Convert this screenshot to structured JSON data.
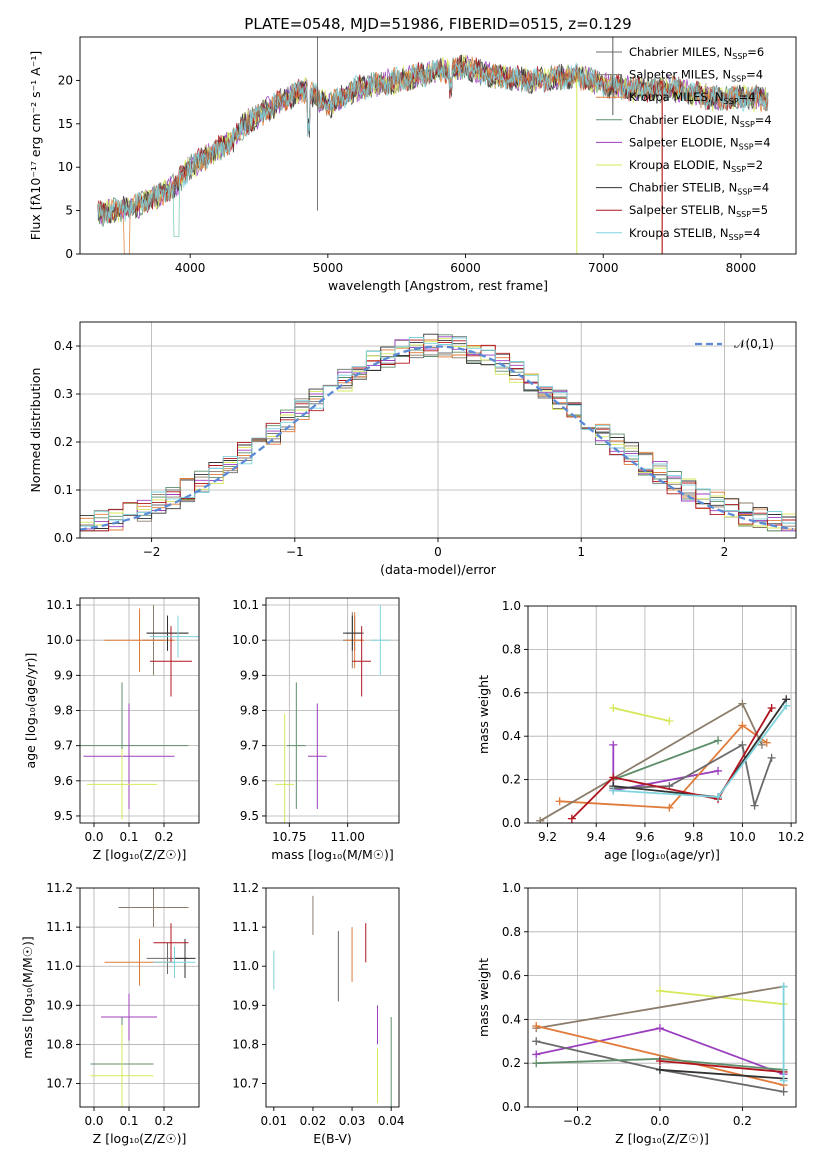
{
  "figure_title": "PLATE=0548, MJD=51986, FIBERID=0515, z=0.129",
  "models": [
    {
      "name": "Chabrier MILES, N",
      "sub": "SSP",
      "tail": "=6",
      "color": "#6b6b6b"
    },
    {
      "name": "Salpeter MILES, N",
      "sub": "SSP",
      "tail": "=4",
      "color": "#8c7d6b"
    },
    {
      "name": "Kroupa MILES, N",
      "sub": "SSP",
      "tail": "=4",
      "color": "#e07b39"
    },
    {
      "name": "Chabrier ELODIE, N",
      "sub": "SSP",
      "tail": "=4",
      "color": "#5f8f6a"
    },
    {
      "name": "Salpeter ELODIE, N",
      "sub": "SSP",
      "tail": "=4",
      "color": "#9b3fbf"
    },
    {
      "name": "Kroupa ELODIE, N",
      "sub": "SSP",
      "tail": "=2",
      "color": "#d6e85a"
    },
    {
      "name": "Chabrier STELIB, N",
      "sub": "SSP",
      "tail": "=4",
      "color": "#333333"
    },
    {
      "name": "Salpeter STELIB, N",
      "sub": "SSP",
      "tail": "=5",
      "color": "#b0151f"
    },
    {
      "name": "Kroupa STELIB, N",
      "sub": "SSP",
      "tail": "=4",
      "color": "#7fd3dd"
    }
  ],
  "chart_data": [
    {
      "id": "spectrum",
      "type": "line",
      "xlabel": "wavelength [Angstrom, rest frame]",
      "ylabel": "Flux [fλ10⁻¹⁷ erg cm⁻² s⁻¹ A⁻¹]",
      "xlim": [
        3200,
        8400
      ],
      "ylim": [
        0,
        25
      ],
      "xticks": [
        4000,
        5000,
        6000,
        7000,
        8000
      ],
      "yticks": [
        0,
        5,
        10,
        15,
        20
      ],
      "grid": false,
      "legend": "right",
      "anchors_x": [
        3300,
        3450,
        3600,
        3750,
        3900,
        4000,
        4100,
        4200,
        4300,
        4400,
        4500,
        4700,
        4850,
        5000,
        5200,
        5500,
        5800,
        6000,
        6200,
        6500,
        6800,
        7000,
        7200,
        7500,
        7800,
        8100
      ],
      "anchors_y": [
        4.5,
        5,
        5.5,
        6.5,
        8,
        10,
        11,
        12,
        13,
        15,
        16,
        18,
        19,
        17,
        19,
        20,
        21,
        21.5,
        20.5,
        20,
        20.5,
        19.5,
        19,
        19,
        18,
        18
      ]
    },
    {
      "id": "residuals",
      "type": "histogram",
      "xlabel": "(data-model)/error",
      "ylabel": "Normed distribution",
      "xlim": [
        -2.5,
        2.5
      ],
      "ylim": [
        0,
        0.45
      ],
      "xticks": [
        -2,
        -1,
        0,
        1,
        2
      ],
      "yticks": [
        0,
        0.1,
        0.2,
        0.3,
        0.4
      ],
      "grid": true,
      "legend": "top-right",
      "legend_label": "𝒩(0,1)",
      "bin_width": 0.1
    },
    {
      "id": "z_age",
      "type": "errorbar",
      "xlabel": "Z [log₁₀(Z/Z☉)]",
      "ylabel": "age  [log₁₀(age/yr)]",
      "xlim": [
        -0.04,
        0.3
      ],
      "ylim": [
        9.48,
        10.12
      ],
      "xticks": [
        0,
        0.1,
        0.2
      ],
      "yticks": [
        9.5,
        9.6,
        9.7,
        9.8,
        9.9,
        10.0,
        10.1
      ],
      "grid": true,
      "points": [
        {
          "x": 0.21,
          "xerr": 0.06,
          "y": 10.02,
          "yerr": 0.05,
          "model": 0
        },
        {
          "x": 0.17,
          "xerr": 0.03,
          "y": 10.0,
          "yerr": 0.1,
          "model": 1
        },
        {
          "x": 0.13,
          "xerr": 0.1,
          "y": 10.0,
          "yerr": 0.09,
          "model": 2
        },
        {
          "x": 0.08,
          "xerr": 0.19,
          "y": 9.7,
          "yerr": 0.18,
          "model": 3
        },
        {
          "x": 0.1,
          "xerr": 0.13,
          "y": 9.67,
          "yerr": 0.15,
          "model": 4
        },
        {
          "x": 0.08,
          "xerr": 0.1,
          "y": 9.59,
          "yerr": 0.1,
          "model": 5
        },
        {
          "x": 0.21,
          "xerr": 0.06,
          "y": 10.02,
          "yerr": 0.05,
          "model": 6
        },
        {
          "x": 0.22,
          "xerr": 0.06,
          "y": 9.94,
          "yerr": 0.1,
          "model": 7
        },
        {
          "x": 0.24,
          "xerr": 0.08,
          "y": 10.01,
          "yerr": 0.06,
          "model": 8
        }
      ]
    },
    {
      "id": "mass_age",
      "type": "errorbar",
      "xlabel": "mass [log₁₀(M/M☉)]",
      "ylabel": "",
      "xlim": [
        10.65,
        11.22
      ],
      "ylim": [
        9.48,
        10.12
      ],
      "xticks": [
        10.75,
        11.0
      ],
      "yticks": [
        9.5,
        9.6,
        9.7,
        9.8,
        9.9,
        10.0,
        10.1
      ],
      "grid": true,
      "points": [
        {
          "x": 11.03,
          "xerr": 0.04,
          "y": 10.02,
          "yerr": 0.05,
          "model": 0
        },
        {
          "x": 11.02,
          "xerr": 0.04,
          "y": 10.0,
          "yerr": 0.08,
          "model": 1
        },
        {
          "x": 11.03,
          "xerr": 0.04,
          "y": 10.0,
          "yerr": 0.08,
          "model": 2
        },
        {
          "x": 10.78,
          "xerr": 0.04,
          "y": 9.7,
          "yerr": 0.18,
          "model": 3
        },
        {
          "x": 10.87,
          "xerr": 0.04,
          "y": 9.67,
          "yerr": 0.15,
          "model": 4
        },
        {
          "x": 10.73,
          "xerr": 0.04,
          "y": 9.59,
          "yerr": 0.2,
          "model": 5
        },
        {
          "x": 11.02,
          "xerr": 0.04,
          "y": 10.02,
          "yerr": 0.05,
          "model": 6
        },
        {
          "x": 11.06,
          "xerr": 0.04,
          "y": 9.94,
          "yerr": 0.1,
          "model": 7
        },
        {
          "x": 11.14,
          "xerr": 0.04,
          "y": 10.0,
          "yerr": 0.1,
          "model": 8
        }
      ]
    },
    {
      "id": "age_weight",
      "type": "line",
      "xlabel": "age  [log₁₀(age/yr)]",
      "ylabel": "mass weight",
      "xlim": [
        9.12,
        10.22
      ],
      "ylim": [
        0,
        1
      ],
      "xticks": [
        9.2,
        9.4,
        9.6,
        9.8,
        10.0,
        10.2
      ],
      "yticks": [
        0,
        0.2,
        0.4,
        0.6,
        0.8,
        1.0
      ],
      "grid": true,
      "series": [
        {
          "model": 4,
          "x": [
            9.47,
            9.47,
            9.9
          ],
          "y": [
            0.36,
            0.15,
            0.24
          ]
        },
        {
          "model": 5,
          "x": [
            9.47,
            9.7
          ],
          "y": [
            0.53,
            0.47
          ]
        },
        {
          "model": 3,
          "x": [
            9.47,
            9.9
          ],
          "y": [
            0.2,
            0.38
          ]
        },
        {
          "model": 2,
          "x": [
            9.25,
            9.7,
            10.0,
            10.1
          ],
          "y": [
            0.1,
            0.07,
            0.45,
            0.37
          ]
        },
        {
          "model": 1,
          "x": [
            9.17,
            10.0,
            10.08
          ],
          "y": [
            0.01,
            0.55,
            0.36
          ]
        },
        {
          "model": 0,
          "x": [
            9.47,
            9.7,
            10.0,
            10.05,
            10.12
          ],
          "y": [
            0.16,
            0.17,
            0.36,
            0.08,
            0.3
          ]
        },
        {
          "model": 6,
          "x": [
            9.47,
            9.9,
            10.18
          ],
          "y": [
            0.17,
            0.12,
            0.57
          ]
        },
        {
          "model": 7,
          "x": [
            9.3,
            9.47,
            9.9,
            10.12
          ],
          "y": [
            0.02,
            0.21,
            0.11,
            0.53
          ]
        },
        {
          "model": 8,
          "x": [
            9.47,
            9.9,
            10.18
          ],
          "y": [
            0.15,
            0.12,
            0.54
          ]
        }
      ]
    },
    {
      "id": "z_mass",
      "type": "errorbar",
      "xlabel": "Z [log₁₀(Z/Z☉)]",
      "ylabel": "mass [log₁₀(M/M☉)]",
      "xlim": [
        -0.04,
        0.3
      ],
      "ylim": [
        10.64,
        11.2
      ],
      "xticks": [
        0,
        0.1,
        0.2
      ],
      "yticks": [
        10.7,
        10.8,
        10.9,
        11.0,
        11.1,
        11.2
      ],
      "grid": true,
      "points": [
        {
          "x": 0.21,
          "xerr": 0.06,
          "y": 11.02,
          "yerr": 0.04,
          "model": 0
        },
        {
          "x": 0.17,
          "xerr": 0.1,
          "y": 11.15,
          "yerr": 0.05,
          "model": 1
        },
        {
          "x": 0.13,
          "xerr": 0.1,
          "y": 11.01,
          "yerr": 0.06,
          "model": 2
        },
        {
          "x": 0.08,
          "xerr": 0.09,
          "y": 10.75,
          "yerr": 0.12,
          "model": 3
        },
        {
          "x": 0.1,
          "xerr": 0.08,
          "y": 10.87,
          "yerr": 0.06,
          "model": 4
        },
        {
          "x": 0.08,
          "xerr": 0.09,
          "y": 10.72,
          "yerr": 0.13,
          "model": 5
        },
        {
          "x": 0.26,
          "xerr": 0.03,
          "y": 11.02,
          "yerr": 0.05,
          "model": 6
        },
        {
          "x": 0.22,
          "xerr": 0.05,
          "y": 11.06,
          "yerr": 0.05,
          "model": 7
        },
        {
          "x": 0.23,
          "xerr": 0.06,
          "y": 11.01,
          "yerr": 0.04,
          "model": 8
        }
      ]
    },
    {
      "id": "ebv_mass",
      "type": "errorbar",
      "xlabel": "E(B-V)",
      "ylabel": "",
      "xlim": [
        0.008,
        0.042
      ],
      "ylim": [
        10.64,
        11.2
      ],
      "xticks": [
        0.01,
        0.02,
        0.03,
        0.04
      ],
      "yticks": [
        10.7,
        10.8,
        10.9,
        11.0,
        11.1,
        11.2
      ],
      "grid": false,
      "points": [
        {
          "x": 0.01,
          "xerr": 0,
          "y": 10.99,
          "yerr": 0.05,
          "model": 8
        },
        {
          "x": 0.02,
          "xerr": 0,
          "y": 11.13,
          "yerr": 0.05,
          "model": 1
        },
        {
          "x": 0.0265,
          "xerr": 0,
          "y": 11.0,
          "yerr": 0.09,
          "model": 0
        },
        {
          "x": 0.03,
          "xerr": 0,
          "y": 11.03,
          "yerr": 0.07,
          "model": 2
        },
        {
          "x": 0.0335,
          "xerr": 0,
          "y": 11.06,
          "yerr": 0.05,
          "model": 7
        },
        {
          "x": 0.0365,
          "xerr": 0,
          "y": 10.85,
          "yerr": 0.05,
          "model": 4
        },
        {
          "x": 0.0365,
          "xerr": 0,
          "y": 10.72,
          "yerr": 0.07,
          "model": 5
        },
        {
          "x": 0.04,
          "xerr": 0,
          "y": 10.75,
          "yerr": 0.12,
          "model": 3
        }
      ]
    },
    {
      "id": "z_weight",
      "type": "line",
      "xlabel": "Z [log₁₀(Z/Z☉)]",
      "ylabel": "mass weight",
      "xlim": [
        -0.32,
        0.33
      ],
      "ylim": [
        0,
        1
      ],
      "xticks": [
        -0.2,
        0.0,
        0.2
      ],
      "yticks": [
        0,
        0.2,
        0.4,
        0.6,
        0.8,
        1.0
      ],
      "grid": true,
      "series": [
        {
          "model": 5,
          "x": [
            0.0,
            0.3
          ],
          "y": [
            0.53,
            0.47
          ]
        },
        {
          "model": 1,
          "x": [
            -0.3,
            0.3
          ],
          "y": [
            0.36,
            0.55
          ]
        },
        {
          "model": 4,
          "x": [
            -0.3,
            0.0,
            0.3
          ],
          "y": [
            0.24,
            0.36,
            0.15
          ]
        },
        {
          "model": 2,
          "x": [
            -0.3,
            0.3
          ],
          "y": [
            0.37,
            0.1
          ]
        },
        {
          "model": 0,
          "x": [
            -0.3,
            0.0,
            0.3
          ],
          "y": [
            0.3,
            0.17,
            0.07
          ]
        },
        {
          "model": 3,
          "x": [
            -0.3,
            0.0,
            0.3
          ],
          "y": [
            0.2,
            0.22,
            0.17
          ]
        },
        {
          "model": 7,
          "x": [
            0.0,
            0.3
          ],
          "y": [
            0.21,
            0.16
          ]
        },
        {
          "model": 6,
          "x": [
            0.0,
            0.3
          ],
          "y": [
            0.17,
            0.13
          ]
        },
        {
          "model": 8,
          "x": [
            0.3,
            0.3
          ],
          "y": [
            0.12,
            0.55
          ]
        }
      ]
    }
  ]
}
